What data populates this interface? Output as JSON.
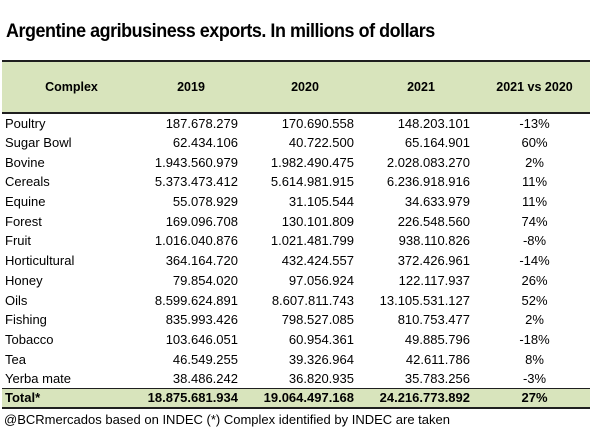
{
  "title": "Argentine agribusiness exports. In millions of dollars",
  "source": "@BCRmercados based on INDEC (*) Complex identified by INDEC are taken",
  "colors": {
    "header_bg": "#d8e4bc",
    "rule": "#1f1f1f"
  },
  "chart_data": {
    "type": "table",
    "columns": [
      "Complex",
      "2019",
      "2020",
      "2021",
      "2021 vs 2020"
    ],
    "rows": [
      [
        "Poultry",
        "187.678.279",
        "170.690.558",
        "148.203.101",
        "-13%"
      ],
      [
        "Sugar Bowl",
        "62.434.106",
        "40.722.500",
        "65.164.901",
        "60%"
      ],
      [
        "Bovine",
        "1.943.560.979",
        "1.982.490.475",
        "2.028.083.270",
        "2%"
      ],
      [
        "Cereals",
        "5.373.473.412",
        "5.614.981.915",
        "6.236.918.916",
        "11%"
      ],
      [
        "Equine",
        "55.078.929",
        "31.105.544",
        "34.633.979",
        "11%"
      ],
      [
        "Forest",
        "169.096.708",
        "130.101.809",
        "226.548.560",
        "74%"
      ],
      [
        "Fruit",
        "1.016.040.876",
        "1.021.481.799",
        "938.110.826",
        "-8%"
      ],
      [
        "Horticultural",
        "364.164.720",
        "432.424.557",
        "372.426.961",
        "-14%"
      ],
      [
        "Honey",
        "79.854.020",
        "97.056.924",
        "122.117.937",
        "26%"
      ],
      [
        "Oils",
        "8.599.624.891",
        "8.607.811.743",
        "13.105.531.127",
        "52%"
      ],
      [
        "Fishing",
        "835.993.426",
        "798.527.085",
        "810.753.477",
        "2%"
      ],
      [
        "Tobacco",
        "103.646.051",
        "60.954.361",
        "49.885.796",
        "-18%"
      ],
      [
        "Tea",
        "46.549.255",
        "39.326.964",
        "42.611.786",
        "8%"
      ],
      [
        "Yerba mate",
        "38.486.242",
        "36.820.935",
        "35.783.256",
        "-3%"
      ]
    ],
    "total": [
      "Total*",
      "18.875.681.934",
      "19.064.497.168",
      "24.216.773.892",
      "27%"
    ]
  }
}
